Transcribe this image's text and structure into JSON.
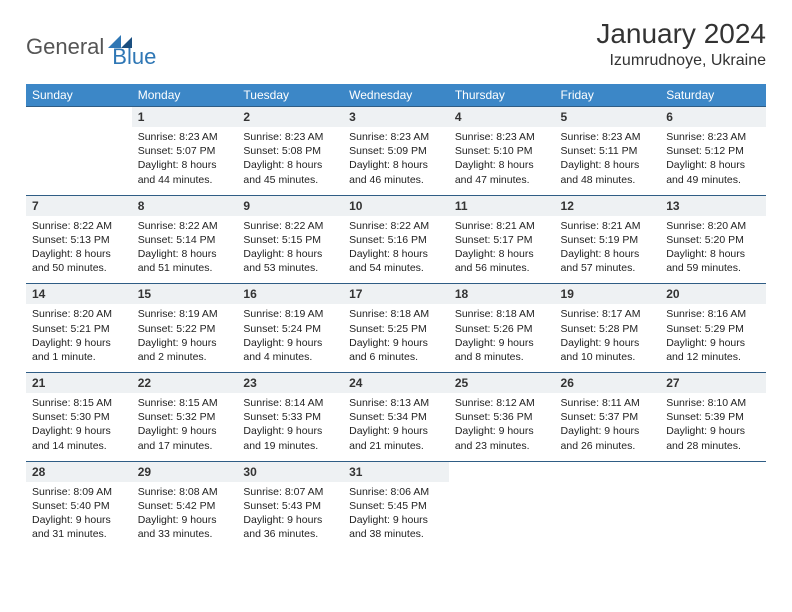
{
  "logo": {
    "part1": "General",
    "part2": "Blue"
  },
  "title": "January 2024",
  "location": "Izumrudnoye, Ukraine",
  "colors": {
    "header_bg": "#3c87c7",
    "header_text": "#ffffff",
    "daynum_bg": "#eef1f3",
    "row_border": "#2f5d85",
    "logo_gray": "#555555",
    "logo_blue": "#2f77b5"
  },
  "fonts": {
    "title_size": 28,
    "location_size": 16,
    "dayhead_size": 12,
    "daynum_size": 12,
    "body_size": 10.5
  },
  "day_headers": [
    "Sunday",
    "Monday",
    "Tuesday",
    "Wednesday",
    "Thursday",
    "Friday",
    "Saturday"
  ],
  "weeks": [
    {
      "nums": [
        "",
        "1",
        "2",
        "3",
        "4",
        "5",
        "6"
      ],
      "cells": [
        {
          "sunrise": "",
          "sunset": "",
          "daylight": ""
        },
        {
          "sunrise": "Sunrise: 8:23 AM",
          "sunset": "Sunset: 5:07 PM",
          "daylight": "Daylight: 8 hours and 44 minutes."
        },
        {
          "sunrise": "Sunrise: 8:23 AM",
          "sunset": "Sunset: 5:08 PM",
          "daylight": "Daylight: 8 hours and 45 minutes."
        },
        {
          "sunrise": "Sunrise: 8:23 AM",
          "sunset": "Sunset: 5:09 PM",
          "daylight": "Daylight: 8 hours and 46 minutes."
        },
        {
          "sunrise": "Sunrise: 8:23 AM",
          "sunset": "Sunset: 5:10 PM",
          "daylight": "Daylight: 8 hours and 47 minutes."
        },
        {
          "sunrise": "Sunrise: 8:23 AM",
          "sunset": "Sunset: 5:11 PM",
          "daylight": "Daylight: 8 hours and 48 minutes."
        },
        {
          "sunrise": "Sunrise: 8:23 AM",
          "sunset": "Sunset: 5:12 PM",
          "daylight": "Daylight: 8 hours and 49 minutes."
        }
      ]
    },
    {
      "nums": [
        "7",
        "8",
        "9",
        "10",
        "11",
        "12",
        "13"
      ],
      "cells": [
        {
          "sunrise": "Sunrise: 8:22 AM",
          "sunset": "Sunset: 5:13 PM",
          "daylight": "Daylight: 8 hours and 50 minutes."
        },
        {
          "sunrise": "Sunrise: 8:22 AM",
          "sunset": "Sunset: 5:14 PM",
          "daylight": "Daylight: 8 hours and 51 minutes."
        },
        {
          "sunrise": "Sunrise: 8:22 AM",
          "sunset": "Sunset: 5:15 PM",
          "daylight": "Daylight: 8 hours and 53 minutes."
        },
        {
          "sunrise": "Sunrise: 8:22 AM",
          "sunset": "Sunset: 5:16 PM",
          "daylight": "Daylight: 8 hours and 54 minutes."
        },
        {
          "sunrise": "Sunrise: 8:21 AM",
          "sunset": "Sunset: 5:17 PM",
          "daylight": "Daylight: 8 hours and 56 minutes."
        },
        {
          "sunrise": "Sunrise: 8:21 AM",
          "sunset": "Sunset: 5:19 PM",
          "daylight": "Daylight: 8 hours and 57 minutes."
        },
        {
          "sunrise": "Sunrise: 8:20 AM",
          "sunset": "Sunset: 5:20 PM",
          "daylight": "Daylight: 8 hours and 59 minutes."
        }
      ]
    },
    {
      "nums": [
        "14",
        "15",
        "16",
        "17",
        "18",
        "19",
        "20"
      ],
      "cells": [
        {
          "sunrise": "Sunrise: 8:20 AM",
          "sunset": "Sunset: 5:21 PM",
          "daylight": "Daylight: 9 hours and 1 minute."
        },
        {
          "sunrise": "Sunrise: 8:19 AM",
          "sunset": "Sunset: 5:22 PM",
          "daylight": "Daylight: 9 hours and 2 minutes."
        },
        {
          "sunrise": "Sunrise: 8:19 AM",
          "sunset": "Sunset: 5:24 PM",
          "daylight": "Daylight: 9 hours and 4 minutes."
        },
        {
          "sunrise": "Sunrise: 8:18 AM",
          "sunset": "Sunset: 5:25 PM",
          "daylight": "Daylight: 9 hours and 6 minutes."
        },
        {
          "sunrise": "Sunrise: 8:18 AM",
          "sunset": "Sunset: 5:26 PM",
          "daylight": "Daylight: 9 hours and 8 minutes."
        },
        {
          "sunrise": "Sunrise: 8:17 AM",
          "sunset": "Sunset: 5:28 PM",
          "daylight": "Daylight: 9 hours and 10 minutes."
        },
        {
          "sunrise": "Sunrise: 8:16 AM",
          "sunset": "Sunset: 5:29 PM",
          "daylight": "Daylight: 9 hours and 12 minutes."
        }
      ]
    },
    {
      "nums": [
        "21",
        "22",
        "23",
        "24",
        "25",
        "26",
        "27"
      ],
      "cells": [
        {
          "sunrise": "Sunrise: 8:15 AM",
          "sunset": "Sunset: 5:30 PM",
          "daylight": "Daylight: 9 hours and 14 minutes."
        },
        {
          "sunrise": "Sunrise: 8:15 AM",
          "sunset": "Sunset: 5:32 PM",
          "daylight": "Daylight: 9 hours and 17 minutes."
        },
        {
          "sunrise": "Sunrise: 8:14 AM",
          "sunset": "Sunset: 5:33 PM",
          "daylight": "Daylight: 9 hours and 19 minutes."
        },
        {
          "sunrise": "Sunrise: 8:13 AM",
          "sunset": "Sunset: 5:34 PM",
          "daylight": "Daylight: 9 hours and 21 minutes."
        },
        {
          "sunrise": "Sunrise: 8:12 AM",
          "sunset": "Sunset: 5:36 PM",
          "daylight": "Daylight: 9 hours and 23 minutes."
        },
        {
          "sunrise": "Sunrise: 8:11 AM",
          "sunset": "Sunset: 5:37 PM",
          "daylight": "Daylight: 9 hours and 26 minutes."
        },
        {
          "sunrise": "Sunrise: 8:10 AM",
          "sunset": "Sunset: 5:39 PM",
          "daylight": "Daylight: 9 hours and 28 minutes."
        }
      ]
    },
    {
      "nums": [
        "28",
        "29",
        "30",
        "31",
        "",
        "",
        ""
      ],
      "cells": [
        {
          "sunrise": "Sunrise: 8:09 AM",
          "sunset": "Sunset: 5:40 PM",
          "daylight": "Daylight: 9 hours and 31 minutes."
        },
        {
          "sunrise": "Sunrise: 8:08 AM",
          "sunset": "Sunset: 5:42 PM",
          "daylight": "Daylight: 9 hours and 33 minutes."
        },
        {
          "sunrise": "Sunrise: 8:07 AM",
          "sunset": "Sunset: 5:43 PM",
          "daylight": "Daylight: 9 hours and 36 minutes."
        },
        {
          "sunrise": "Sunrise: 8:06 AM",
          "sunset": "Sunset: 5:45 PM",
          "daylight": "Daylight: 9 hours and 38 minutes."
        },
        {
          "sunrise": "",
          "sunset": "",
          "daylight": ""
        },
        {
          "sunrise": "",
          "sunset": "",
          "daylight": ""
        },
        {
          "sunrise": "",
          "sunset": "",
          "daylight": ""
        }
      ]
    }
  ]
}
